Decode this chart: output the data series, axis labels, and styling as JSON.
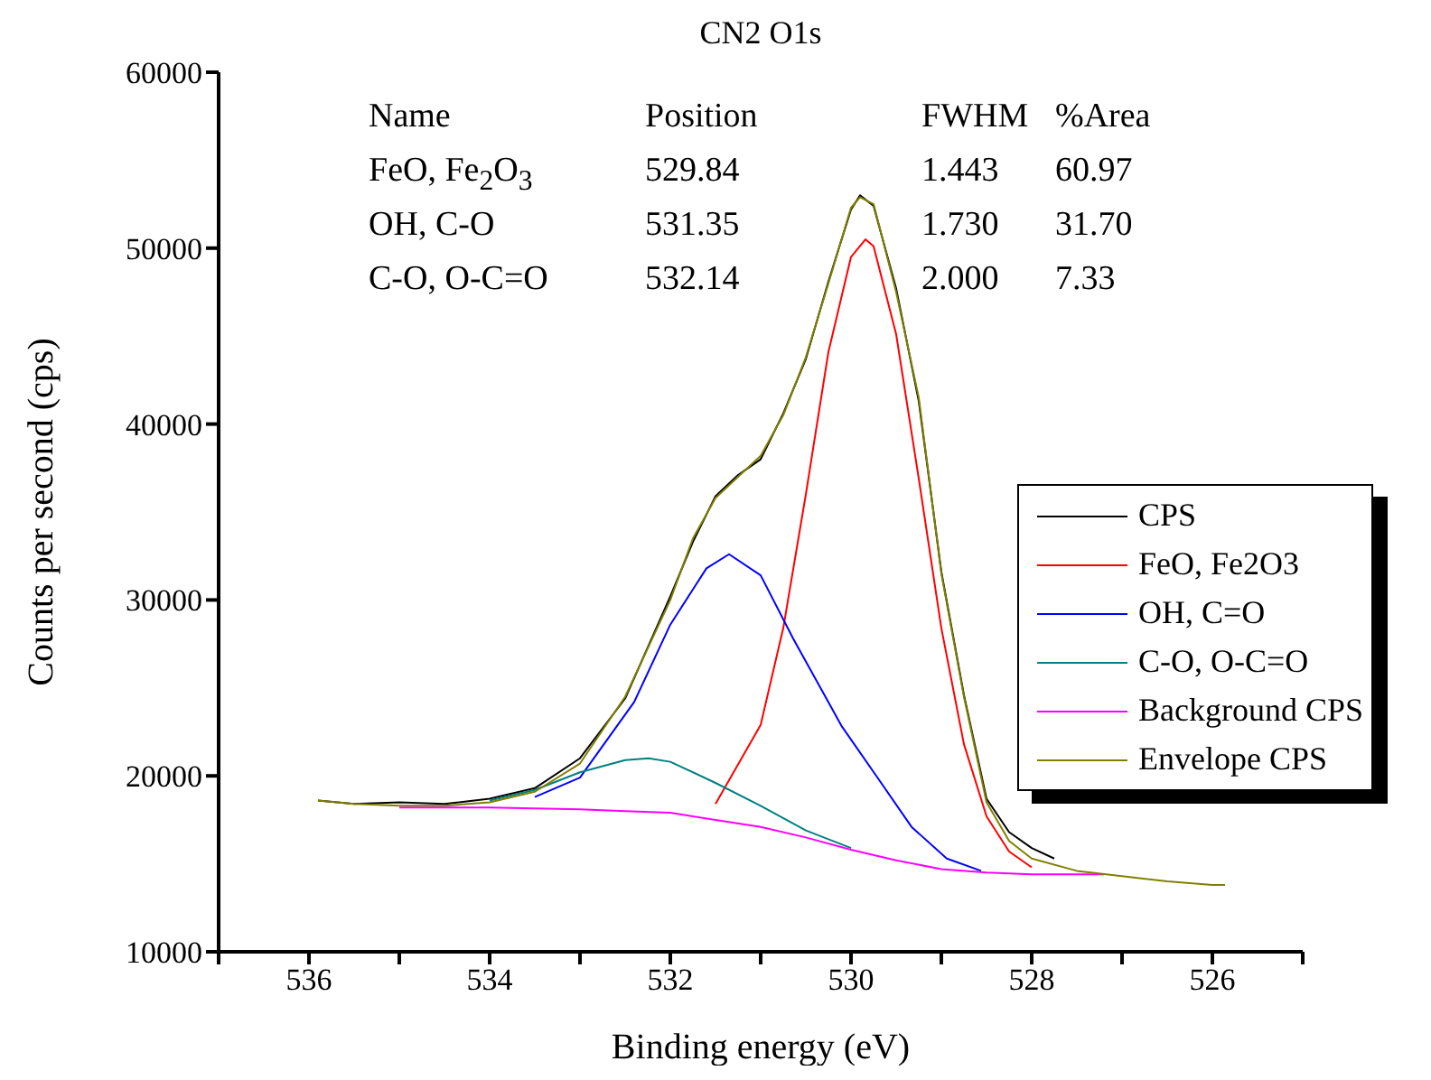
{
  "chart_data": {
    "type": "line",
    "title": "CN2 O1s",
    "xlabel": "Binding energy (eV)",
    "ylabel": "Counts per second (cps)",
    "xlim": [
      537,
      525
    ],
    "ylim": [
      10000,
      60000
    ],
    "xticks": [
      {
        "value": 537,
        "label": null
      },
      536,
      {
        "value": 535,
        "label": null
      },
      534,
      {
        "value": 533,
        "label": null
      },
      532,
      {
        "value": 531,
        "label": null
      },
      530,
      {
        "value": 529,
        "label": null
      },
      528,
      {
        "value": 527,
        "label": null
      },
      526,
      {
        "value": 525,
        "label": null
      }
    ],
    "yticks": [
      10000,
      20000,
      30000,
      40000,
      50000,
      60000
    ],
    "grid": false,
    "legend": "right",
    "marker": "none",
    "line_style": "solid",
    "annotations": [
      "Name",
      "Position",
      "FWHM",
      "%Area",
      "FeO, Fe$_{2}$O$_{3}$",
      "529.84",
      "1.443",
      "60.97",
      "OH, C-O",
      "531.35",
      "1.730",
      "31.70",
      "C-O, O-C=O",
      "532.14",
      "2.000",
      "7.33"
    ],
    "series": [
      {
        "name": "CPS",
        "color": "#000000",
        "x": [
          535.9,
          535.5,
          535,
          534.5,
          534,
          533.5,
          533,
          532.5,
          532,
          531.75,
          531.5,
          531.25,
          531,
          530.75,
          530.5,
          530.25,
          530,
          529.9,
          529.75,
          529.5,
          529.25,
          529,
          528.75,
          528.5,
          528.25,
          528,
          527.75
        ],
        "values": [
          18600,
          18400,
          18500,
          18400,
          18700,
          19300,
          21000,
          24400,
          30200,
          33300,
          35900,
          37100,
          38000,
          40600,
          43700,
          48100,
          52200,
          53000,
          52400,
          47700,
          41300,
          31600,
          24600,
          18700,
          16800,
          15900,
          15300
        ]
      },
      {
        "name": "FeO, Fe2O3",
        "color": "#ff0000",
        "x": [
          531.5,
          531,
          530.75,
          530.5,
          530.25,
          530,
          529.84,
          529.75,
          529.5,
          529.25,
          529,
          528.75,
          528.5,
          528.25,
          528
        ],
        "values": [
          18400,
          22900,
          28400,
          36000,
          44100,
          49500,
          50500,
          50100,
          45100,
          36900,
          28400,
          21800,
          17700,
          15700,
          14800
        ]
      },
      {
        "name": "OH, C=O",
        "color": "#0000ff",
        "x": [
          533.5,
          533,
          532.4,
          532,
          531.6,
          531.35,
          531,
          530.64,
          530.1,
          529.72,
          529.33,
          528.94,
          528.56
        ],
        "values": [
          18800,
          19900,
          24200,
          28600,
          31800,
          32600,
          31400,
          27800,
          22800,
          20000,
          17100,
          15300,
          14600
        ]
      },
      {
        "name": "C-O, O-C=O",
        "color": "#008080",
        "x": [
          534,
          533.5,
          533,
          532.5,
          532.24,
          532,
          531.5,
          531,
          530.5,
          530
        ],
        "values": [
          18600,
          19200,
          20200,
          20900,
          21000,
          20800,
          19600,
          18300,
          16900,
          15900
        ]
      },
      {
        "name": "Background CPS",
        "color": "#ff00ff",
        "x": [
          535,
          534,
          533,
          532.5,
          532,
          531.5,
          531,
          530.5,
          530,
          529.5,
          529,
          528.5,
          528,
          527.2
        ],
        "values": [
          18200,
          18200,
          18100,
          18000,
          17900,
          17500,
          17100,
          16500,
          15800,
          15200,
          14700,
          14500,
          14400,
          14400
        ]
      },
      {
        "name": "Envelope CPS",
        "color": "#808000",
        "x": [
          535.9,
          535.5,
          535,
          534.5,
          534,
          533.5,
          533,
          532.5,
          532,
          531.75,
          531.5,
          531.25,
          531,
          530.75,
          530.5,
          530.25,
          530,
          529.9,
          529.75,
          529.5,
          529.25,
          529,
          528.75,
          528.5,
          528.25,
          528,
          527.5,
          527,
          526.5,
          526,
          525.86
        ],
        "values": [
          18600,
          18400,
          18300,
          18300,
          18500,
          19100,
          20700,
          24500,
          30000,
          33500,
          35800,
          37000,
          38200,
          40500,
          43800,
          48000,
          52300,
          52900,
          52500,
          47500,
          41500,
          31500,
          24500,
          18500,
          16300,
          15300,
          14600,
          14300,
          14000,
          13800,
          13800
        ]
      }
    ]
  }
}
